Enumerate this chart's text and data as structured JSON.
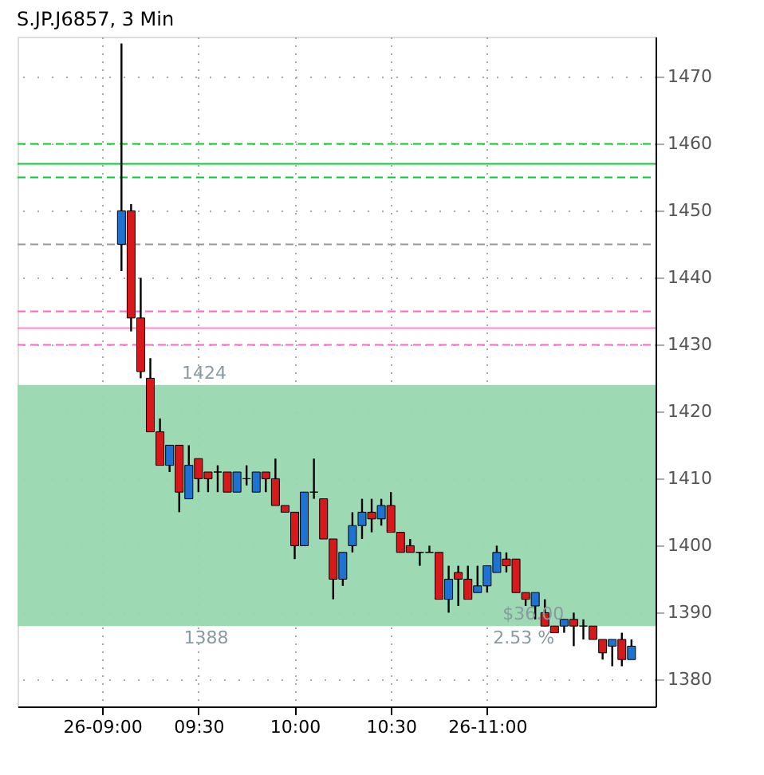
{
  "chart_data": {
    "type": "candlestick",
    "title": "S.JP.J6857, 3 Min",
    "x": [
      9.1,
      9.15,
      9.2,
      9.25,
      9.3,
      9.35,
      9.4,
      9.45,
      9.5,
      9.55,
      9.6,
      9.65,
      9.7,
      9.75,
      9.8,
      9.85,
      9.9,
      9.95,
      10.0,
      10.05,
      10.1,
      10.15,
      10.2,
      10.25,
      10.3,
      10.35,
      10.4,
      10.45,
      10.5,
      10.55,
      10.6,
      10.65,
      10.7,
      10.75,
      10.8,
      10.85,
      10.9,
      10.95,
      11.0,
      11.05,
      11.1,
      11.15,
      11.2,
      11.25,
      11.3,
      11.35,
      11.4,
      11.45,
      11.5,
      11.55,
      11.6,
      11.65,
      11.7,
      11.75
    ],
    "ohlc": [
      [
        1445,
        1475,
        1441,
        1450
      ],
      [
        1450,
        1451,
        1432,
        1434
      ],
      [
        1434,
        1440,
        1425,
        1426
      ],
      [
        1425,
        1428,
        1417,
        1417
      ],
      [
        1417,
        1419,
        1412,
        1412
      ],
      [
        1412,
        1415,
        1411,
        1415
      ],
      [
        1415,
        1415,
        1405,
        1408
      ],
      [
        1407,
        1415,
        1407,
        1412
      ],
      [
        1413,
        1413,
        1408,
        1410
      ],
      [
        1411,
        1411,
        1408,
        1410
      ],
      [
        1411,
        1412,
        1408,
        1411
      ],
      [
        1411,
        1411,
        1408,
        1408
      ],
      [
        1408,
        1411,
        1408,
        1411
      ],
      [
        1410,
        1412,
        1409,
        1410
      ],
      [
        1408,
        1411,
        1408,
        1411
      ],
      [
        1411,
        1411,
        1408,
        1410
      ],
      [
        1410,
        1413,
        1406,
        1406
      ],
      [
        1406,
        1406,
        1405,
        1405
      ],
      [
        1405,
        1405,
        1398,
        1400
      ],
      [
        1400,
        1408,
        1400,
        1408
      ],
      [
        1408,
        1413,
        1407,
        1408
      ],
      [
        1407,
        1407,
        1401,
        1401
      ],
      [
        1401,
        1401,
        1392,
        1395
      ],
      [
        1395,
        1399,
        1394,
        1399
      ],
      [
        1400,
        1405,
        1399,
        1403
      ],
      [
        1403,
        1407,
        1401,
        1405
      ],
      [
        1405,
        1407,
        1402,
        1404
      ],
      [
        1404,
        1407,
        1403,
        1406
      ],
      [
        1406,
        1408,
        1402,
        1402
      ],
      [
        1402,
        1402,
        1399,
        1399
      ],
      [
        1400,
        1401,
        1399,
        1399
      ],
      [
        1399,
        1399,
        1397,
        1399
      ],
      [
        1399,
        1400,
        1399,
        1399
      ],
      [
        1399,
        1399,
        1392,
        1392
      ],
      [
        1392,
        1397,
        1390,
        1395
      ],
      [
        1396,
        1397,
        1391,
        1395
      ],
      [
        1395,
        1397,
        1392,
        1392
      ],
      [
        1393,
        1397,
        1393,
        1394
      ],
      [
        1394,
        1397,
        1393,
        1397
      ],
      [
        1396,
        1400,
        1396,
        1399
      ],
      [
        1398,
        1399,
        1396,
        1397
      ],
      [
        1398,
        1398,
        1393,
        1393
      ],
      [
        1393,
        1393,
        1391,
        1392
      ],
      [
        1391,
        1393,
        1389,
        1393
      ],
      [
        1390,
        1392,
        1388,
        1388
      ],
      [
        1388,
        1388,
        1387,
        1387
      ],
      [
        1388,
        1389,
        1387,
        1389
      ],
      [
        1389,
        1390,
        1385,
        1388
      ],
      [
        1388,
        1389,
        1386,
        1388
      ],
      [
        1388,
        1388,
        1386,
        1386
      ],
      [
        1386,
        1386,
        1383,
        1384
      ],
      [
        1385,
        1386,
        1382,
        1386
      ],
      [
        1386,
        1387,
        1382,
        1383
      ],
      [
        1383,
        1386,
        1383,
        1385
      ]
    ],
    "colors": [
      "#1e73d2",
      "#d7191c",
      "#d7191c",
      "#d7191c",
      "#d7191c",
      "#1e73d2",
      "#d7191c",
      "#1e73d2",
      "#d7191c",
      "#d7191c",
      "#000000",
      "#d7191c",
      "#1e73d2",
      "#000000",
      "#1e73d2",
      "#d7191c",
      "#d7191c",
      "#d7191c",
      "#d7191c",
      "#1e73d2",
      "#000000",
      "#d7191c",
      "#d7191c",
      "#1e73d2",
      "#1e73d2",
      "#1e73d2",
      "#d7191c",
      "#1e73d2",
      "#d7191c",
      "#d7191c",
      "#d7191c",
      "#000000",
      "#000000",
      "#d7191c",
      "#1e73d2",
      "#d7191c",
      "#d7191c",
      "#1e73d2",
      "#1e73d2",
      "#1e73d2",
      "#d7191c",
      "#d7191c",
      "#d7191c",
      "#1e73d2",
      "#d7191c",
      "#d7191c",
      "#1e73d2",
      "#d7191c",
      "#000000",
      "#d7191c",
      "#d7191c",
      "#1e73d2",
      "#d7191c",
      "#1e73d2"
    ],
    "xlim": [
      8.56,
      11.875
    ],
    "xticks": [
      {
        "value": 9,
        "label": "26-09:00"
      },
      {
        "value": 9.5,
        "label": "09:30"
      },
      {
        "value": 10,
        "label": "10:00"
      },
      {
        "value": 10.5,
        "label": "10:30"
      },
      {
        "value": 11,
        "label": "26-11:00"
      }
    ],
    "ylim": [
      1376,
      1476
    ],
    "yticks": [
      1380,
      1390,
      1400,
      1410,
      1420,
      1430,
      1440,
      1450,
      1460,
      1470
    ],
    "grid": true,
    "ref_lines": [
      {
        "axis": "y",
        "value": 1460,
        "color": "#00cc33",
        "line_style": "dashed"
      },
      {
        "axis": "y",
        "value": 1457,
        "color": "#00cc33",
        "line_style": "solid"
      },
      {
        "axis": "y",
        "value": 1455,
        "color": "#00cc33",
        "line_style": "dashed"
      },
      {
        "axis": "y",
        "value": 1445,
        "color": "#999999",
        "line_style": "dashed"
      },
      {
        "axis": "y",
        "value": 1435,
        "color": "#ff66cc",
        "line_style": "dashed"
      },
      {
        "axis": "y",
        "value": 1432.5,
        "color": "#ff88cc",
        "line_style": "solid"
      },
      {
        "axis": "y",
        "value": 1430,
        "color": "#ff66cc",
        "line_style": "dashed"
      }
    ],
    "bands": [
      {
        "axis": "y",
        "from": 1388,
        "to": 1424,
        "color": "#98d8b0"
      }
    ],
    "annotations": [
      {
        "text": "1424",
        "x": 9.53,
        "y": 1424
      },
      {
        "text": "1388",
        "x": 9.54,
        "y": 1388
      },
      {
        "text": "$36.00",
        "x": 11.24,
        "y": 1388
      },
      {
        "text": "2.53 %",
        "x": 11.19,
        "y": 1388
      }
    ]
  }
}
